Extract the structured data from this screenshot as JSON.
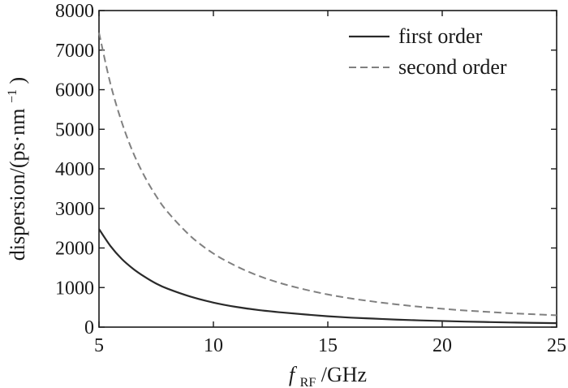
{
  "chart_data": {
    "type": "line",
    "title": "",
    "xlabel": {
      "italic_symbol": "f",
      "subscript": "RF",
      "rest": "/GHz"
    },
    "ylabel": {
      "main": "dispersion/(ps·nm",
      "superscript": "−1",
      "close": ")"
    },
    "xlim": [
      5,
      25
    ],
    "ylim": [
      0,
      8000
    ],
    "xticks": [
      5,
      10,
      15,
      20,
      25
    ],
    "yticks": [
      0,
      1000,
      2000,
      3000,
      4000,
      5000,
      6000,
      7000,
      8000
    ],
    "grid": false,
    "legend_position": "top-right",
    "series": [
      {
        "name": "first order",
        "style": "solid",
        "color": "#2a2a2a",
        "x": [
          5,
          5.5,
          6,
          6.5,
          7,
          7.5,
          8,
          9,
          10,
          11,
          12,
          13,
          14,
          15,
          16,
          17,
          18,
          19,
          20,
          21,
          22,
          23,
          24,
          25
        ],
        "y": [
          2480,
          2050,
          1720,
          1470,
          1270,
          1100,
          970,
          770,
          620,
          510,
          430,
          370,
          320,
          275,
          240,
          215,
          190,
          170,
          155,
          140,
          128,
          117,
          108,
          100
        ]
      },
      {
        "name": "second order",
        "style": "dashed",
        "color": "#808080",
        "x": [
          5,
          5.5,
          6,
          6.5,
          7,
          7.5,
          8,
          9,
          10,
          11,
          12,
          13,
          14,
          15,
          16,
          17,
          18,
          19,
          20,
          21,
          22,
          23,
          24,
          25
        ],
        "y": [
          7440,
          6150,
          5170,
          4400,
          3800,
          3310,
          2910,
          2300,
          1860,
          1540,
          1290,
          1100,
          950,
          825,
          725,
          645,
          575,
          515,
          465,
          420,
          385,
          350,
          325,
          300
        ]
      }
    ]
  }
}
